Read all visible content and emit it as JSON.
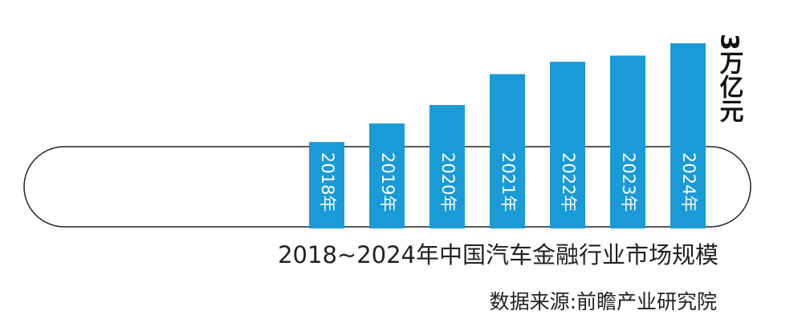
{
  "chart_data": {
    "type": "bar",
    "title": "2018~2024年中国汽车金融行业市场规模",
    "source": "数据来源:前瞻产业研究院",
    "annotation": "3万亿元",
    "categories": [
      "2018年",
      "2019年",
      "2020年",
      "2021年",
      "2022年",
      "2023年",
      "2024年"
    ],
    "values": [
      1.4,
      1.7,
      2.0,
      2.5,
      2.7,
      2.8,
      3.0
    ],
    "color": "#1a9ad6"
  }
}
